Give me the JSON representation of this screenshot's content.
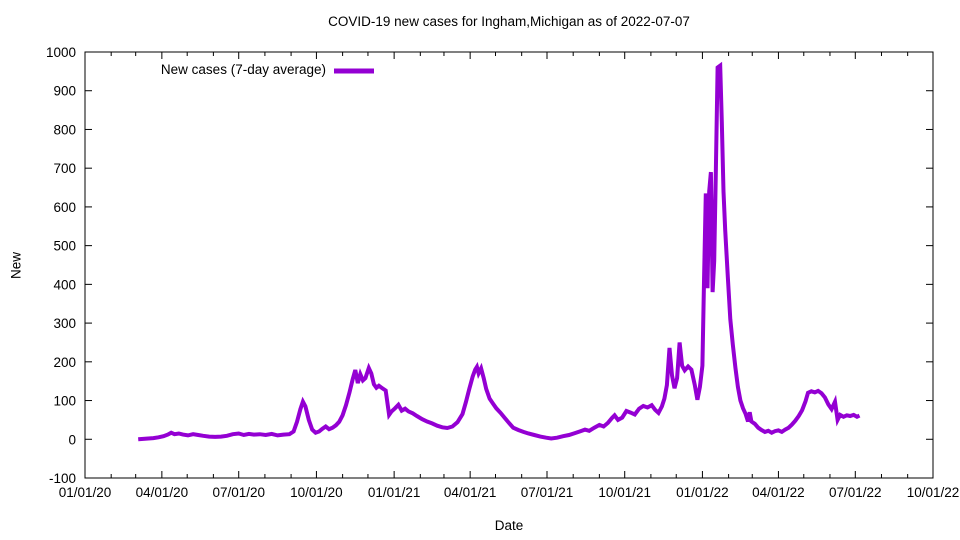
{
  "title": "COVID-19 new cases for Ingham,Michigan as of 2022-07-07",
  "chart_data": {
    "type": "line",
    "title": "COVID-19 new cases for Ingham,Michigan as of 2022-07-07",
    "xlabel": "Date",
    "ylabel": "New",
    "x_range": [
      "2020-01-01",
      "2022-10-01"
    ],
    "ylim": [
      -100,
      1000
    ],
    "y_tick_step": 100,
    "y_tick_labels": [
      "-100",
      "0",
      "100",
      "200",
      "300",
      "400",
      "500",
      "600",
      "700",
      "800",
      "900",
      "1000"
    ],
    "x_ticks": [
      {
        "date": "2020-01-01",
        "label": "01/01/20"
      },
      {
        "date": "2020-04-01",
        "label": "04/01/20"
      },
      {
        "date": "2020-07-01",
        "label": "07/01/20"
      },
      {
        "date": "2020-10-01",
        "label": "10/01/20"
      },
      {
        "date": "2021-01-01",
        "label": "01/01/21"
      },
      {
        "date": "2021-04-01",
        "label": "04/01/21"
      },
      {
        "date": "2021-07-01",
        "label": "07/01/21"
      },
      {
        "date": "2021-10-01",
        "label": "10/01/21"
      },
      {
        "date": "2022-01-01",
        "label": "01/01/22"
      },
      {
        "date": "2022-04-01",
        "label": "04/01/22"
      },
      {
        "date": "2022-07-01",
        "label": "07/01/22"
      },
      {
        "date": "2022-10-01",
        "label": "10/01/22"
      }
    ],
    "grid": false,
    "legend_position": "top-left",
    "legend": [
      {
        "label": "New cases (7-day average)",
        "color": "#9400D3"
      }
    ],
    "series": [
      {
        "name": "New cases (7-day average)",
        "color": "#9400D3",
        "points": [
          [
            "2020-03-04",
            0
          ],
          [
            "2020-03-10",
            1
          ],
          [
            "2020-03-16",
            2
          ],
          [
            "2020-03-22",
            3
          ],
          [
            "2020-03-28",
            5
          ],
          [
            "2020-04-03",
            8
          ],
          [
            "2020-04-08",
            12
          ],
          [
            "2020-04-12",
            17
          ],
          [
            "2020-04-16",
            13
          ],
          [
            "2020-04-21",
            15
          ],
          [
            "2020-04-26",
            12
          ],
          [
            "2020-05-02",
            10
          ],
          [
            "2020-05-08",
            13
          ],
          [
            "2020-05-14",
            11
          ],
          [
            "2020-05-20",
            9
          ],
          [
            "2020-05-27",
            7
          ],
          [
            "2020-06-03",
            6
          ],
          [
            "2020-06-10",
            7
          ],
          [
            "2020-06-17",
            9
          ],
          [
            "2020-06-24",
            13
          ],
          [
            "2020-07-01",
            15
          ],
          [
            "2020-07-07",
            11
          ],
          [
            "2020-07-13",
            14
          ],
          [
            "2020-07-19",
            12
          ],
          [
            "2020-07-26",
            13
          ],
          [
            "2020-08-02",
            11
          ],
          [
            "2020-08-09",
            14
          ],
          [
            "2020-08-16",
            10
          ],
          [
            "2020-08-23",
            12
          ],
          [
            "2020-08-30",
            13
          ],
          [
            "2020-09-04",
            20
          ],
          [
            "2020-09-08",
            45
          ],
          [
            "2020-09-12",
            78
          ],
          [
            "2020-09-15",
            97
          ],
          [
            "2020-09-18",
            85
          ],
          [
            "2020-09-22",
            50
          ],
          [
            "2020-09-26",
            25
          ],
          [
            "2020-09-30",
            17
          ],
          [
            "2020-10-04",
            20
          ],
          [
            "2020-10-08",
            27
          ],
          [
            "2020-10-12",
            33
          ],
          [
            "2020-10-16",
            26
          ],
          [
            "2020-10-20",
            30
          ],
          [
            "2020-10-24",
            36
          ],
          [
            "2020-10-28",
            45
          ],
          [
            "2020-11-01",
            62
          ],
          [
            "2020-11-05",
            88
          ],
          [
            "2020-11-09",
            120
          ],
          [
            "2020-11-13",
            155
          ],
          [
            "2020-11-16",
            179
          ],
          [
            "2020-11-19",
            145
          ],
          [
            "2020-11-22",
            168
          ],
          [
            "2020-11-25",
            152
          ],
          [
            "2020-11-28",
            158
          ],
          [
            "2020-12-02",
            184
          ],
          [
            "2020-12-05",
            170
          ],
          [
            "2020-12-08",
            142
          ],
          [
            "2020-12-11",
            133
          ],
          [
            "2020-12-14",
            138
          ],
          [
            "2020-12-18",
            132
          ],
          [
            "2020-12-22",
            126
          ],
          [
            "2020-12-26",
            63
          ],
          [
            "2020-12-29",
            72
          ],
          [
            "2021-01-02",
            80
          ],
          [
            "2021-01-06",
            89
          ],
          [
            "2021-01-10",
            74
          ],
          [
            "2021-01-14",
            79
          ],
          [
            "2021-01-18",
            72
          ],
          [
            "2021-01-23",
            67
          ],
          [
            "2021-01-28",
            60
          ],
          [
            "2021-02-03",
            52
          ],
          [
            "2021-02-09",
            46
          ],
          [
            "2021-02-15",
            41
          ],
          [
            "2021-02-21",
            35
          ],
          [
            "2021-02-27",
            31
          ],
          [
            "2021-03-05",
            29
          ],
          [
            "2021-03-11",
            33
          ],
          [
            "2021-03-17",
            44
          ],
          [
            "2021-03-23",
            65
          ],
          [
            "2021-03-27",
            96
          ],
          [
            "2021-03-31",
            130
          ],
          [
            "2021-04-04",
            162
          ],
          [
            "2021-04-07",
            180
          ],
          [
            "2021-04-09",
            187
          ],
          [
            "2021-04-11",
            170
          ],
          [
            "2021-04-14",
            183
          ],
          [
            "2021-04-17",
            158
          ],
          [
            "2021-04-20",
            130
          ],
          [
            "2021-04-24",
            105
          ],
          [
            "2021-04-28",
            92
          ],
          [
            "2021-05-02",
            80
          ],
          [
            "2021-05-07",
            68
          ],
          [
            "2021-05-12",
            55
          ],
          [
            "2021-05-17",
            42
          ],
          [
            "2021-05-22",
            30
          ],
          [
            "2021-05-28",
            24
          ],
          [
            "2021-06-03",
            19
          ],
          [
            "2021-06-09",
            15
          ],
          [
            "2021-06-16",
            11
          ],
          [
            "2021-06-23",
            7
          ],
          [
            "2021-06-30",
            4
          ],
          [
            "2021-07-06",
            2
          ],
          [
            "2021-07-13",
            4
          ],
          [
            "2021-07-20",
            8
          ],
          [
            "2021-07-27",
            11
          ],
          [
            "2021-08-03",
            16
          ],
          [
            "2021-08-10",
            21
          ],
          [
            "2021-08-15",
            25
          ],
          [
            "2021-08-20",
            22
          ],
          [
            "2021-08-26",
            30
          ],
          [
            "2021-09-01",
            37
          ],
          [
            "2021-09-06",
            33
          ],
          [
            "2021-09-11",
            42
          ],
          [
            "2021-09-16",
            55
          ],
          [
            "2021-09-19",
            62
          ],
          [
            "2021-09-23",
            50
          ],
          [
            "2021-09-28",
            56
          ],
          [
            "2021-10-03",
            73
          ],
          [
            "2021-10-08",
            69
          ],
          [
            "2021-10-13",
            64
          ],
          [
            "2021-10-18",
            79
          ],
          [
            "2021-10-23",
            86
          ],
          [
            "2021-10-28",
            82
          ],
          [
            "2021-11-02",
            88
          ],
          [
            "2021-11-06",
            76
          ],
          [
            "2021-11-10",
            68
          ],
          [
            "2021-11-14",
            85
          ],
          [
            "2021-11-17",
            105
          ],
          [
            "2021-11-20",
            140
          ],
          [
            "2021-11-23",
            236
          ],
          [
            "2021-11-26",
            165
          ],
          [
            "2021-11-29",
            132
          ],
          [
            "2021-12-02",
            158
          ],
          [
            "2021-12-05",
            250
          ],
          [
            "2021-12-08",
            190
          ],
          [
            "2021-12-11",
            178
          ],
          [
            "2021-12-15",
            188
          ],
          [
            "2021-12-19",
            180
          ],
          [
            "2021-12-23",
            140
          ],
          [
            "2021-12-26",
            102
          ],
          [
            "2021-12-29",
            135
          ],
          [
            "2022-01-01",
            190
          ],
          [
            "2022-01-03",
            420
          ],
          [
            "2022-01-05",
            635
          ],
          [
            "2022-01-07",
            390
          ],
          [
            "2022-01-09",
            640
          ],
          [
            "2022-01-11",
            690
          ],
          [
            "2022-01-13",
            380
          ],
          [
            "2022-01-15",
            460
          ],
          [
            "2022-01-17",
            700
          ],
          [
            "2022-01-19",
            960
          ],
          [
            "2022-01-22",
            965
          ],
          [
            "2022-01-24",
            820
          ],
          [
            "2022-01-26",
            640
          ],
          [
            "2022-01-28",
            540
          ],
          [
            "2022-01-31",
            420
          ],
          [
            "2022-02-03",
            310
          ],
          [
            "2022-02-06",
            245
          ],
          [
            "2022-02-09",
            185
          ],
          [
            "2022-02-12",
            135
          ],
          [
            "2022-02-15",
            100
          ],
          [
            "2022-02-18",
            80
          ],
          [
            "2022-02-21",
            66
          ],
          [
            "2022-02-24",
            46
          ],
          [
            "2022-02-26",
            70
          ],
          [
            "2022-02-28",
            46
          ],
          [
            "2022-03-04",
            40
          ],
          [
            "2022-03-08",
            30
          ],
          [
            "2022-03-12",
            24
          ],
          [
            "2022-03-16",
            19
          ],
          [
            "2022-03-20",
            22
          ],
          [
            "2022-03-24",
            17
          ],
          [
            "2022-03-28",
            21
          ],
          [
            "2022-04-01",
            23
          ],
          [
            "2022-04-05",
            19
          ],
          [
            "2022-04-09",
            25
          ],
          [
            "2022-04-13",
            30
          ],
          [
            "2022-04-17",
            38
          ],
          [
            "2022-04-21",
            48
          ],
          [
            "2022-04-25",
            60
          ],
          [
            "2022-04-29",
            75
          ],
          [
            "2022-05-03",
            98
          ],
          [
            "2022-05-06",
            120
          ],
          [
            "2022-05-10",
            124
          ],
          [
            "2022-05-14",
            121
          ],
          [
            "2022-05-18",
            125
          ],
          [
            "2022-05-22",
            119
          ],
          [
            "2022-05-26",
            108
          ],
          [
            "2022-05-30",
            90
          ],
          [
            "2022-06-03",
            78
          ],
          [
            "2022-06-07",
            97
          ],
          [
            "2022-06-10",
            50
          ],
          [
            "2022-06-13",
            63
          ],
          [
            "2022-06-17",
            58
          ],
          [
            "2022-06-21",
            62
          ],
          [
            "2022-06-25",
            60
          ],
          [
            "2022-06-29",
            63
          ],
          [
            "2022-07-03",
            58
          ],
          [
            "2022-07-06",
            61
          ]
        ]
      }
    ]
  }
}
